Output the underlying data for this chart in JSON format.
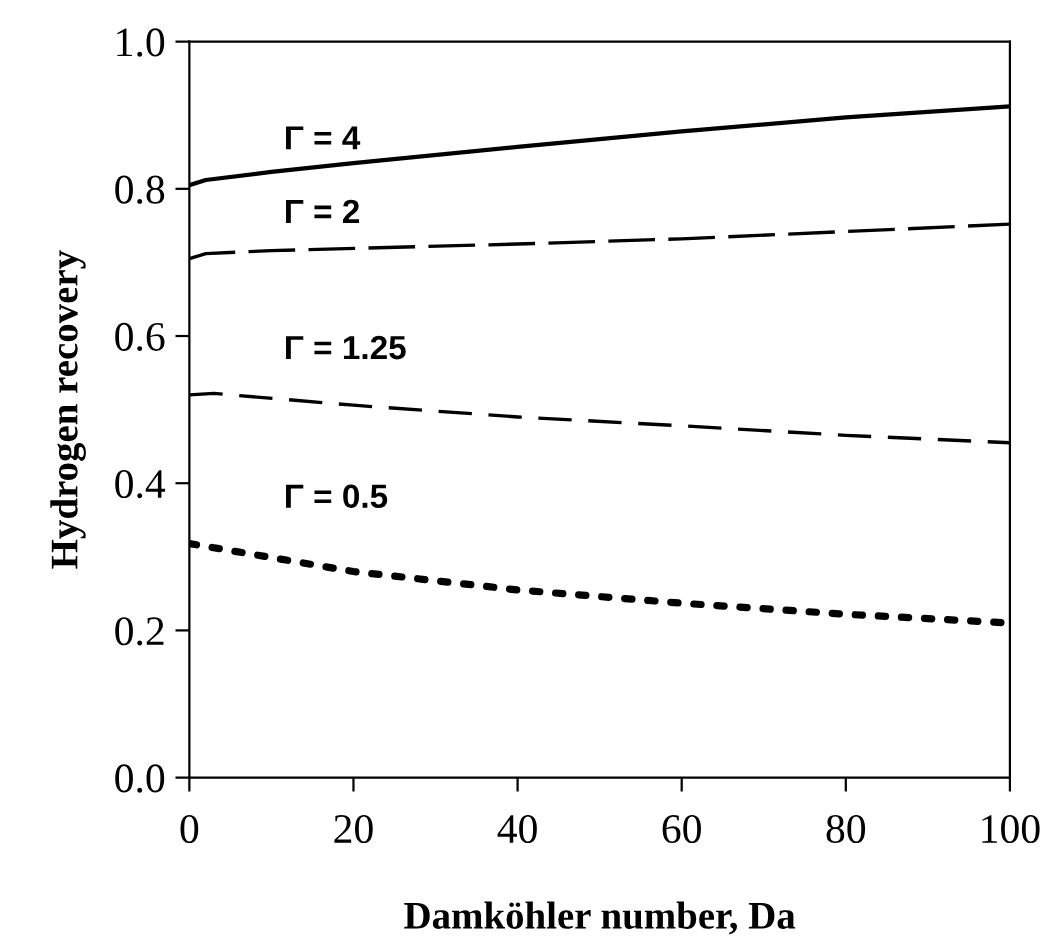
{
  "chart_data": {
    "type": "line",
    "xlabel": "Damköhler number, Da",
    "ylabel": "Hydrogen recovery",
    "xlim": [
      0,
      100
    ],
    "ylim": [
      0,
      1.0
    ],
    "xticks": [
      0,
      20,
      40,
      60,
      80,
      100
    ],
    "yticks": [
      {
        "value": 0,
        "label": "0.0"
      },
      0.2,
      0.4,
      0.6,
      0.8,
      {
        "value": 1.0,
        "label": "1.0"
      }
    ],
    "grid": false,
    "legend": false,
    "marker": "none",
    "series": [
      {
        "name": "Γ = 4",
        "color": "#000000",
        "line_style": "solid",
        "x": [
          0,
          2,
          10,
          20,
          40,
          60,
          80,
          100
        ],
        "values": [
          0.805,
          0.812,
          0.823,
          0.835,
          0.857,
          0.878,
          0.897,
          0.912
        ]
      },
      {
        "name": "Γ = 2",
        "color": "#000000",
        "line_style": "dashed",
        "x": [
          0,
          2,
          10,
          40,
          60,
          80,
          100
        ],
        "values": [
          0.705,
          0.712,
          0.716,
          0.725,
          0.732,
          0.742,
          0.752
        ]
      },
      {
        "name": "Γ = 1.25",
        "color": "#000000",
        "line_style": "dashed",
        "x": [
          0,
          3,
          20,
          40,
          60,
          80,
          100
        ],
        "values": [
          0.52,
          0.522,
          0.506,
          0.49,
          0.478,
          0.465,
          0.455
        ]
      },
      {
        "name": "Γ = 0.5",
        "color": "#000000",
        "line_style": "dotted",
        "x": [
          0,
          20,
          40,
          60,
          80,
          100
        ],
        "values": [
          0.318,
          0.28,
          0.255,
          0.237,
          0.222,
          0.21
        ]
      }
    ]
  }
}
